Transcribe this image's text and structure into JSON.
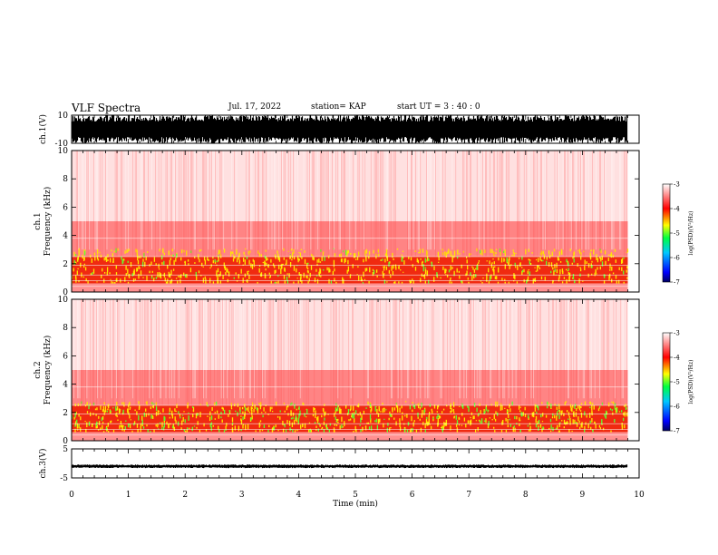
{
  "header": {
    "title": "VLF Spectra",
    "date": "Jul. 17, 2022",
    "station": "station= KAP",
    "start": "start UT = 3 : 40 : 0"
  },
  "chart_data": [
    {
      "type": "line",
      "name": "ch1-waveform",
      "ylabel": "ch.1(V)",
      "ylim": [
        -10,
        10
      ],
      "yticks": [
        "10",
        "-10"
      ],
      "xlim": [
        0,
        10
      ],
      "data_end_min": 9.8,
      "trace": "dense black noise band spanning approximately -10 to 10 V"
    },
    {
      "type": "heatmap",
      "name": "ch1-spectrogram",
      "ylabel": "ch.1",
      "ylabel2": "Frequency (kHz)",
      "ylim": [
        0,
        10
      ],
      "yticks": [
        "0",
        "2",
        "4",
        "6",
        "8",
        "10"
      ],
      "xlim": [
        0,
        10
      ],
      "data_end_min": 9.8,
      "colorbar": {
        "label": "log(PSD)(V²/Hz)",
        "ticks": [
          "-3",
          "-4",
          "-5",
          "-6",
          "-7"
        ],
        "range": [
          -7,
          -3
        ],
        "colors": [
          "#000080",
          "#0000ff",
          "#00c0ff",
          "#00ff40",
          "#ffff00",
          "#ff0000",
          "#ffffff"
        ]
      }
    },
    {
      "type": "heatmap",
      "name": "ch2-spectrogram",
      "ylabel": "ch.2",
      "ylabel2": "Frequency (kHz)",
      "ylim": [
        0,
        10
      ],
      "yticks": [
        "0",
        "2",
        "4",
        "6",
        "8",
        "10"
      ],
      "xlim": [
        0,
        10
      ],
      "data_end_min": 9.8,
      "colorbar": {
        "label": "log(PSD)(V²/Hz)",
        "ticks": [
          "-3",
          "-4",
          "-5",
          "-6",
          "-7"
        ],
        "range": [
          -7,
          -3
        ],
        "colors": [
          "#000080",
          "#0000ff",
          "#00c0ff",
          "#00ff40",
          "#ffff00",
          "#ff0000",
          "#ffffff"
        ]
      }
    },
    {
      "type": "line",
      "name": "ch3-waveform",
      "ylabel": "ch.3(V)",
      "ylim": [
        -5,
        5
      ],
      "yticks": [
        "5",
        "-5"
      ],
      "xlim": [
        0,
        10
      ],
      "xlabel": "Time (min)",
      "xticks": [
        "0",
        "1",
        "2",
        "3",
        "4",
        "5",
        "6",
        "7",
        "8",
        "9",
        "10"
      ],
      "data_end_min": 9.8,
      "trace": "narrow black band near -1 V"
    }
  ]
}
